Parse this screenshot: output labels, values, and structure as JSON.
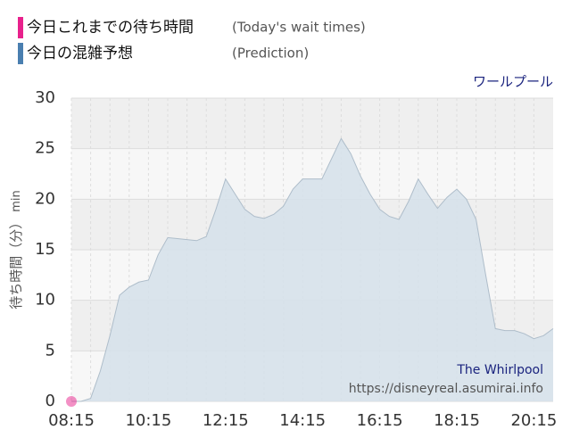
{
  "chart_data": {
    "type": "area",
    "title": "ワールプール",
    "ylabel": "待ち時間（分）",
    "ylabel_unit": "min",
    "watermark_name": "The Whirlpool",
    "watermark_url": "https://disneyreal.asumirai.info",
    "xlim": [
      495,
      1245
    ],
    "xticks": [
      {
        "value": 495,
        "label": "08:15"
      },
      {
        "value": 615,
        "label": "10:15"
      },
      {
        "value": 735,
        "label": "12:15"
      },
      {
        "value": 855,
        "label": "14:15"
      },
      {
        "value": 975,
        "label": "16:15"
      },
      {
        "value": 1095,
        "label": "18:15"
      },
      {
        "value": 1215,
        "label": "20:15"
      }
    ],
    "x_minor_ticks": [
      525,
      555,
      585,
      645,
      675,
      705,
      765,
      795,
      825,
      885,
      915,
      945,
      1005,
      1035,
      1065,
      1125,
      1155,
      1185
    ],
    "ylim": [
      0,
      30
    ],
    "yticks": [
      0,
      5,
      10,
      15,
      20,
      25,
      30
    ],
    "grid": true,
    "series": [
      {
        "name": "今日これまでの待ち時間",
        "note": "(Today's wait times)",
        "color": "#e8218c",
        "kind": "point",
        "x": [
          495
        ],
        "values": [
          0
        ]
      },
      {
        "name": "今日の混雑予想",
        "note": "(Prediction)",
        "color": "#4a7fb0",
        "kind": "area",
        "x": [
          495,
          510,
          525,
          540,
          555,
          570,
          585,
          600,
          615,
          630,
          645,
          660,
          675,
          690,
          705,
          720,
          735,
          750,
          765,
          780,
          795,
          810,
          825,
          840,
          855,
          870,
          885,
          900,
          915,
          930,
          945,
          960,
          975,
          990,
          1005,
          1020,
          1035,
          1050,
          1065,
          1080,
          1095,
          1110,
          1125,
          1140,
          1155,
          1170,
          1185,
          1200,
          1215,
          1230,
          1245
        ],
        "values": [
          0,
          0,
          0.3,
          3,
          6.5,
          10.5,
          11.3,
          11.8,
          12,
          14.5,
          16.2,
          16.1,
          16,
          15.9,
          16.3,
          19,
          22,
          20.5,
          19,
          18.3,
          18.1,
          18.5,
          19.3,
          21,
          22,
          22,
          22,
          24,
          26,
          24.5,
          22.3,
          20.5,
          19,
          18.3,
          18,
          19.8,
          22,
          20.5,
          19.1,
          20.2,
          21,
          20,
          18,
          12.5,
          7.2,
          7,
          7,
          6.7,
          6.2,
          6.5,
          7.2
        ]
      }
    ]
  }
}
